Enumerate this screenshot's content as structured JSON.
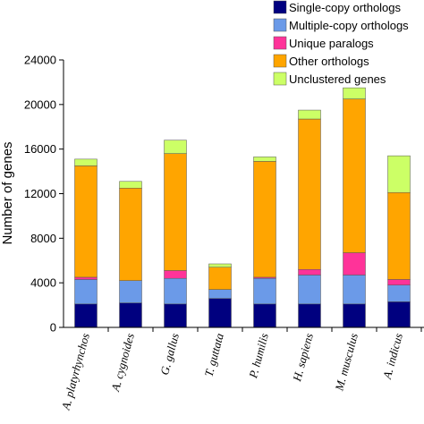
{
  "chart_data": {
    "type": "bar",
    "stacked": true,
    "ylabel": "Number of genes",
    "ylim": [
      0,
      24000
    ],
    "yticks": [
      "0",
      "4000",
      "8000",
      "12000",
      "16000",
      "20000",
      "24000"
    ],
    "grid": false,
    "legend_position": "top-right",
    "categories": [
      "A. platyrhynchos",
      "A. cygnoides",
      "G. gallus",
      "T. guttata",
      "P. humilis",
      "H. sapiens",
      "M. musculus",
      "A. indicus"
    ],
    "series": [
      {
        "name": "Single-copy orthologs",
        "color": "#00007f",
        "values": [
          2100,
          2200,
          2100,
          2600,
          2100,
          2100,
          2100,
          2300
        ]
      },
      {
        "name": "Multiple-copy orthologs",
        "color": "#6b9ae8",
        "values": [
          2200,
          2000,
          2300,
          800,
          2300,
          2600,
          2600,
          1500
        ]
      },
      {
        "name": "Unique paralogs",
        "color": "#ff3399",
        "values": [
          200,
          0,
          700,
          0,
          100,
          500,
          2000,
          500
        ]
      },
      {
        "name": "Other orthologs",
        "color": "#ffa500",
        "values": [
          10000,
          8300,
          10500,
          2000,
          10400,
          13500,
          13800,
          7800
        ]
      },
      {
        "name": "Unclustered genes",
        "color": "#ccff66",
        "values": [
          600,
          600,
          1200,
          300,
          400,
          800,
          1000,
          3300
        ]
      }
    ]
  }
}
